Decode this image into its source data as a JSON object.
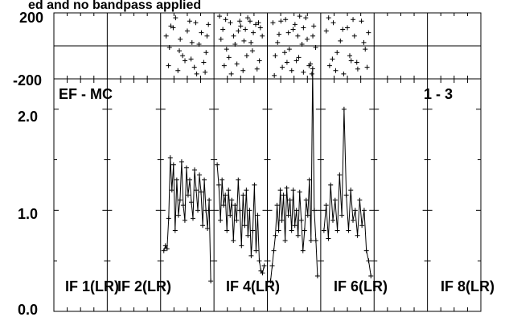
{
  "title": "ed and no bandpass applied",
  "chart_data": [
    {
      "type": "scatter",
      "panel": "phase",
      "ylim": [
        -200,
        200
      ],
      "tick_labels": [
        "200",
        "-200"
      ],
      "points_if3": [
        [
          0.05,
          60
        ],
        [
          0.12,
          -10
        ],
        [
          0.2,
          110
        ],
        [
          0.3,
          -150
        ],
        [
          0.35,
          40
        ],
        [
          0.45,
          -90
        ],
        [
          0.55,
          150
        ],
        [
          0.6,
          20
        ],
        [
          0.7,
          -170
        ],
        [
          0.8,
          80
        ],
        [
          0.9,
          -40
        ],
        [
          0.95,
          130
        ],
        [
          0.1,
          -120
        ],
        [
          0.25,
          170
        ],
        [
          0.4,
          -60
        ],
        [
          0.5,
          90
        ],
        [
          0.65,
          -130
        ],
        [
          0.75,
          10
        ],
        [
          0.85,
          -100
        ],
        [
          0.92,
          60
        ],
        [
          0.15,
          120
        ],
        [
          0.33,
          -30
        ],
        [
          0.58,
          -80
        ],
        [
          0.68,
          140
        ],
        [
          0.88,
          -160
        ]
      ],
      "points_if4": [
        [
          0.05,
          180
        ],
        [
          0.12,
          100
        ],
        [
          0.2,
          -20
        ],
        [
          0.28,
          140
        ],
        [
          0.35,
          60
        ],
        [
          0.42,
          -110
        ],
        [
          0.5,
          120
        ],
        [
          0.57,
          30
        ],
        [
          0.63,
          -60
        ],
        [
          0.7,
          150
        ],
        [
          0.77,
          80
        ],
        [
          0.85,
          -140
        ],
        [
          0.92,
          110
        ],
        [
          0.08,
          40
        ],
        [
          0.18,
          160
        ],
        [
          0.25,
          -70
        ],
        [
          0.38,
          10
        ],
        [
          0.45,
          90
        ],
        [
          0.55,
          -150
        ],
        [
          0.65,
          170
        ],
        [
          0.75,
          -30
        ],
        [
          0.82,
          130
        ],
        [
          0.9,
          -90
        ],
        [
          0.96,
          60
        ],
        [
          0.3,
          -170
        ],
        [
          0.6,
          100
        ],
        [
          0.15,
          -120
        ],
        [
          0.48,
          150
        ],
        [
          0.72,
          20
        ],
        [
          0.88,
          140
        ]
      ],
      "points_if5": [
        [
          0.05,
          140
        ],
        [
          0.1,
          -60
        ],
        [
          0.18,
          70
        ],
        [
          0.25,
          -130
        ],
        [
          0.32,
          160
        ],
        [
          0.4,
          -20
        ],
        [
          0.48,
          100
        ],
        [
          0.55,
          -90
        ],
        [
          0.62,
          180
        ],
        [
          0.7,
          -160
        ],
        [
          0.78,
          40
        ],
        [
          0.85,
          -110
        ],
        [
          0.92,
          120
        ],
        [
          0.08,
          -180
        ],
        [
          0.15,
          20
        ],
        [
          0.22,
          150
        ],
        [
          0.3,
          -40
        ],
        [
          0.38,
          80
        ],
        [
          0.45,
          -150
        ],
        [
          0.52,
          130
        ],
        [
          0.6,
          -70
        ],
        [
          0.67,
          10
        ],
        [
          0.75,
          170
        ],
        [
          0.82,
          -120
        ],
        [
          0.9,
          60
        ],
        [
          0.96,
          -10
        ],
        [
          0.35,
          -100
        ],
        [
          0.58,
          60
        ],
        [
          0.7,
          110
        ],
        [
          0.88,
          -170
        ]
      ],
      "points_if6": [
        [
          0.05,
          90
        ],
        [
          0.12,
          -120
        ],
        [
          0.2,
          140
        ],
        [
          0.28,
          -40
        ],
        [
          0.35,
          30
        ],
        [
          0.42,
          -170
        ],
        [
          0.5,
          110
        ],
        [
          0.58,
          -90
        ],
        [
          0.65,
          60
        ],
        [
          0.72,
          -140
        ],
        [
          0.8,
          150
        ],
        [
          0.88,
          -20
        ],
        [
          0.95,
          80
        ],
        [
          0.1,
          170
        ],
        [
          0.25,
          -150
        ],
        [
          0.4,
          100
        ],
        [
          0.55,
          -60
        ],
        [
          0.7,
          -100
        ],
        [
          0.85,
          20
        ],
        [
          0.92,
          -130
        ],
        [
          0.18,
          -80
        ],
        [
          0.62,
          160
        ]
      ]
    },
    {
      "type": "line",
      "panel": "amplitude",
      "ylim": [
        0.0,
        2.3
      ],
      "yticks": [
        "0.0",
        "1.0",
        "2.0"
      ],
      "baseline_label": "EF - MC",
      "pair_label": "1 - 3",
      "if_labels": [
        "IF 1(LR)",
        "IF 2(LR)",
        "IF 4(LR)",
        "IF 6(LR)",
        "IF 8(LR)"
      ],
      "series": [
        {
          "if": 3,
          "values": [
            0.6,
            0.65,
            0.62,
            0.92,
            1.52,
            1.2,
            1.45,
            0.8,
            1.3,
            0.95,
            1.1,
            1.48,
            1.05,
            0.9,
            1.42,
            1.15,
            1.3,
            1.08,
            0.92,
            1.4,
            1.2,
            1.0,
            1.35,
            1.18,
            0.85,
            1.3,
            1.0,
            0.82,
            1.1,
            0.3
          ]
        },
        {
          "if": 4,
          "values": [
            1.45,
            1.25,
            0.9,
            1.3,
            1.05,
            1.15,
            0.8,
            1.2,
            0.95,
            1.1,
            0.7,
            1.05,
            0.9,
            1.3,
            1.0,
            0.65,
            1.15,
            0.85,
            1.2,
            0.75,
            1.0,
            0.55,
            0.8,
            1.25,
            0.6,
            0.95,
            0.5,
            0.4,
            0.38,
            0.45
          ]
        },
        {
          "if": 5,
          "values": [
            0.3,
            0.45,
            0.6,
            0.75,
            1.05,
            0.8,
            1.2,
            0.9,
            1.15,
            0.7,
            1.22,
            0.95,
            1.1,
            0.8,
            1.2,
            0.85,
            1.0,
            0.75,
            1.18,
            0.9,
            0.6,
            0.8,
            1.1,
            0.95,
            1.3,
            0.7,
            2.4,
            1.0,
            0.7,
            0.35
          ]
        },
        {
          "if": 6,
          "values": [
            0.8,
            1.05,
            0.72,
            1.25,
            0.9,
            1.1,
            0.8,
            1.35,
            0.95,
            2.0,
            1.15,
            0.8,
            1.2,
            0.9,
            1.0,
            0.75,
            1.1,
            0.85,
            1.0,
            0.6,
            0.5,
            0.35
          ]
        }
      ]
    }
  ]
}
